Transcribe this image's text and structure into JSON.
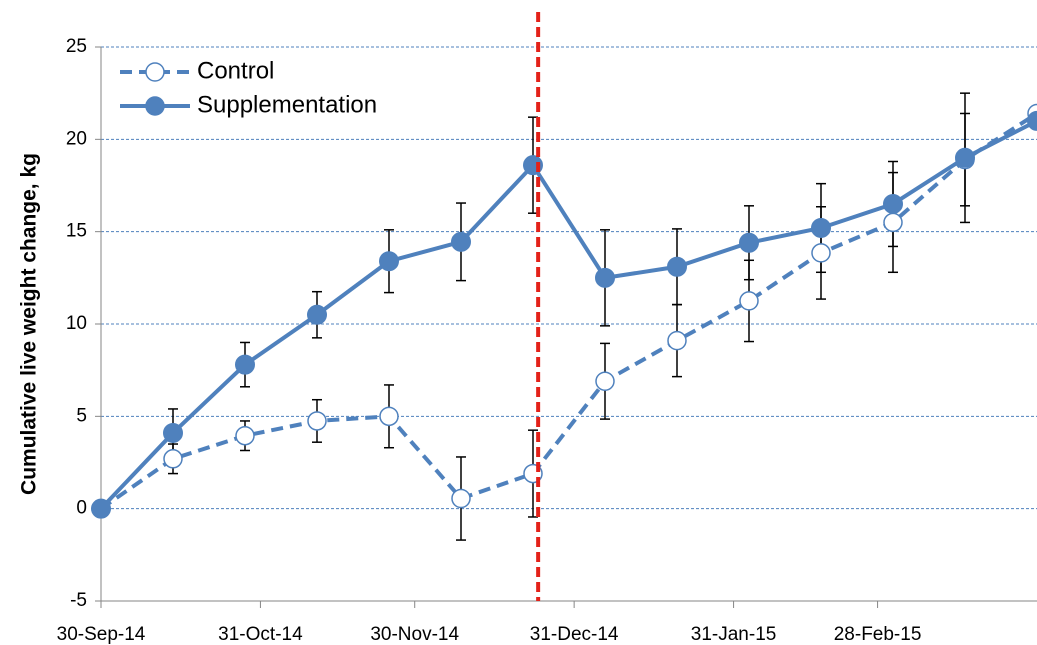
{
  "chart_data": {
    "type": "line",
    "y_label": "Cumulative live weight change, kg",
    "x": [
      "2014-09-30",
      "2014-10-14",
      "2014-10-28",
      "2014-11-11",
      "2014-11-25",
      "2014-12-09",
      "2014-12-23",
      "2015-01-06",
      "2015-01-20",
      "2015-02-03",
      "2015-02-17",
      "2015-03-03",
      "2015-03-17",
      "2015-03-31"
    ],
    "series": [
      {
        "name": "Control",
        "color": "#4f81bd",
        "dashed": true,
        "filled": false,
        "values": [
          0,
          2.7,
          3.95,
          4.75,
          5.0,
          0.55,
          1.9,
          6.9,
          9.1,
          11.25,
          13.85,
          15.5,
          18.9,
          21.4
        ],
        "errors": [
          0,
          0.8,
          0.8,
          1.15,
          1.7,
          2.25,
          2.35,
          2.05,
          1.95,
          2.2,
          2.5,
          2.7,
          2.5,
          0
        ]
      },
      {
        "name": "Supplementation",
        "color": "#4f81bd",
        "dashed": false,
        "filled": true,
        "values": [
          0,
          4.1,
          7.8,
          10.5,
          13.4,
          14.45,
          18.6,
          12.5,
          13.1,
          14.4,
          15.2,
          16.5,
          19.0,
          21.0
        ],
        "errors": [
          0,
          1.3,
          1.2,
          1.25,
          1.7,
          2.1,
          2.6,
          2.6,
          2.05,
          2.0,
          2.4,
          2.3,
          3.5,
          0
        ]
      }
    ],
    "xlim": [
      "2014-09-30",
      "2015-03-31"
    ],
    "xticks": [
      {
        "value": "2014-09-30",
        "label": "30-Sep-14"
      },
      {
        "value": "2014-10-31",
        "label": "31-Oct-14"
      },
      {
        "value": "2014-11-30",
        "label": "30-Nov-14"
      },
      {
        "value": "2014-12-31",
        "label": "31-Dec-14"
      },
      {
        "value": "2015-01-31",
        "label": "31-Jan-15"
      },
      {
        "value": "2015-02-28",
        "label": "28-Feb-15"
      }
    ],
    "ylim": [
      -5,
      25
    ],
    "yticks": [
      -5,
      0,
      5,
      10,
      15,
      20,
      25
    ],
    "grid": true,
    "grid_color": "#4f81bd",
    "vline": {
      "x": "2014-12-24",
      "color": "#e32119"
    },
    "legend": "top-left"
  }
}
